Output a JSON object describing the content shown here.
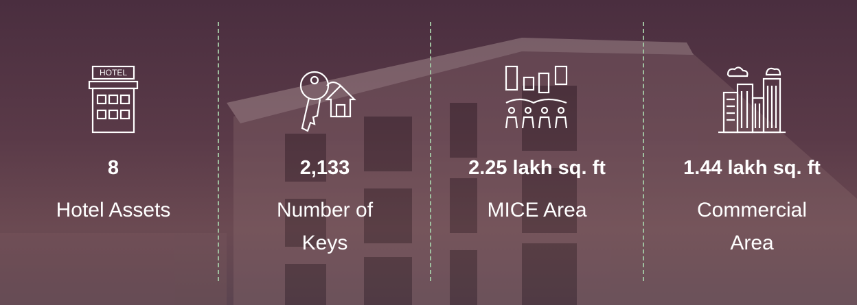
{
  "stats": [
    {
      "icon_text": "HOTEL",
      "value": "8",
      "label": "Hotel Assets"
    },
    {
      "value": "2,133",
      "label": "Number of Keys"
    },
    {
      "value": "2.25 lakh sq. ft",
      "label": "MICE Area"
    },
    {
      "value": "1.44 lakh sq. ft",
      "label": "Commercial Area"
    }
  ]
}
